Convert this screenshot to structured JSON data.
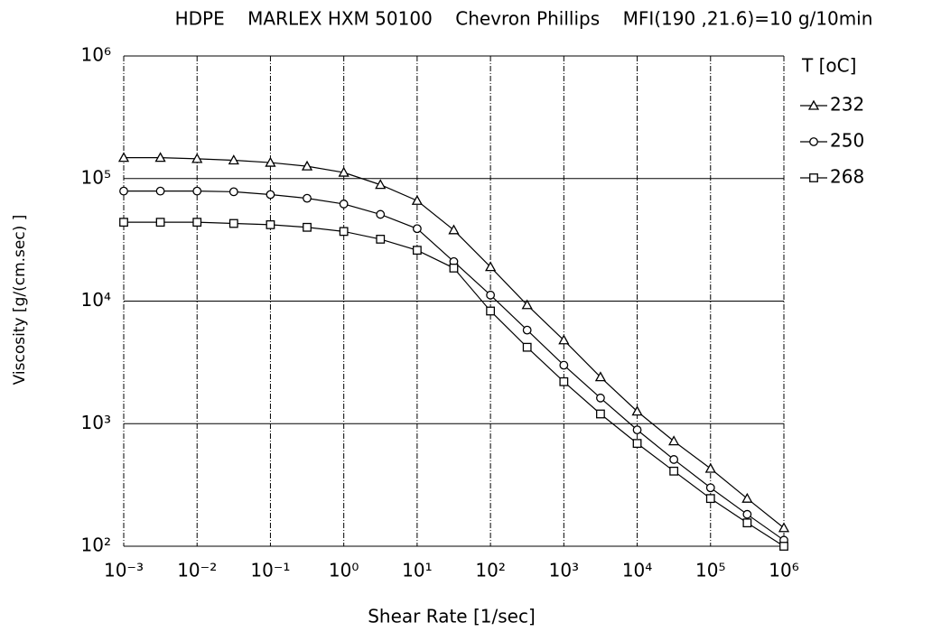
{
  "chart_data": {
    "type": "line",
    "title": "HDPE    MARLEX HXM 50100    Chevron Phillips    MFI(190 ,21.6)=10 g/10min",
    "x_label": "Shear Rate [1/sec]",
    "y_label": "Viscosity [g/(cm.sec) ]",
    "legend_title": "T [oC]",
    "legend_position": "right",
    "log_x": true,
    "log_y": true,
    "grid": true,
    "xlim": [
      0.001,
      1000000
    ],
    "ylim": [
      100,
      1000000
    ],
    "xticks": [
      {
        "value": 0.001,
        "label": "10⁻³"
      },
      {
        "value": 0.01,
        "label": "10⁻²"
      },
      {
        "value": 0.1,
        "label": "10⁻¹"
      },
      {
        "value": 1,
        "label": "10⁰"
      },
      {
        "value": 10,
        "label": "10¹"
      },
      {
        "value": 100,
        "label": "10²"
      },
      {
        "value": 1000,
        "label": "10³"
      },
      {
        "value": 10000,
        "label": "10⁴"
      },
      {
        "value": 100000,
        "label": "10⁵"
      },
      {
        "value": 1000000,
        "label": "10⁶"
      }
    ],
    "yticks": [
      {
        "value": 100,
        "label": "10²"
      },
      {
        "value": 1000,
        "label": "10³"
      },
      {
        "value": 10000,
        "label": "10⁴"
      },
      {
        "value": 100000,
        "label": "10⁵"
      },
      {
        "value": 1000000,
        "label": "10⁶"
      }
    ],
    "x": [
      0.001,
      0.00316,
      0.01,
      0.0316,
      0.1,
      0.316,
      1,
      3.16,
      10,
      31.6,
      100,
      316,
      1000,
      3160,
      10000,
      31600,
      100000,
      316000,
      1000000
    ],
    "series": [
      {
        "name": "232",
        "color": "#000000",
        "marker": "triangle",
        "values": [
          148000,
          148000,
          145000,
          141000,
          135000,
          126000,
          112000,
          89000,
          66000,
          38000,
          19000,
          9300,
          4800,
          2400,
          1260,
          720,
          430,
          245,
          141
        ]
      },
      {
        "name": "250",
        "color": "#000000",
        "marker": "circle",
        "values": [
          79000,
          79000,
          79000,
          78000,
          74000,
          69000,
          62000,
          51000,
          39000,
          21000,
          11200,
          5800,
          3000,
          1620,
          890,
          510,
          300,
          182,
          112
        ]
      },
      {
        "name": "268",
        "color": "#000000",
        "marker": "square",
        "values": [
          44000,
          44000,
          44000,
          43000,
          42000,
          40000,
          37000,
          32000,
          26000,
          18600,
          8300,
          4200,
          2200,
          1200,
          690,
          410,
          245,
          155,
          100
        ]
      }
    ]
  }
}
